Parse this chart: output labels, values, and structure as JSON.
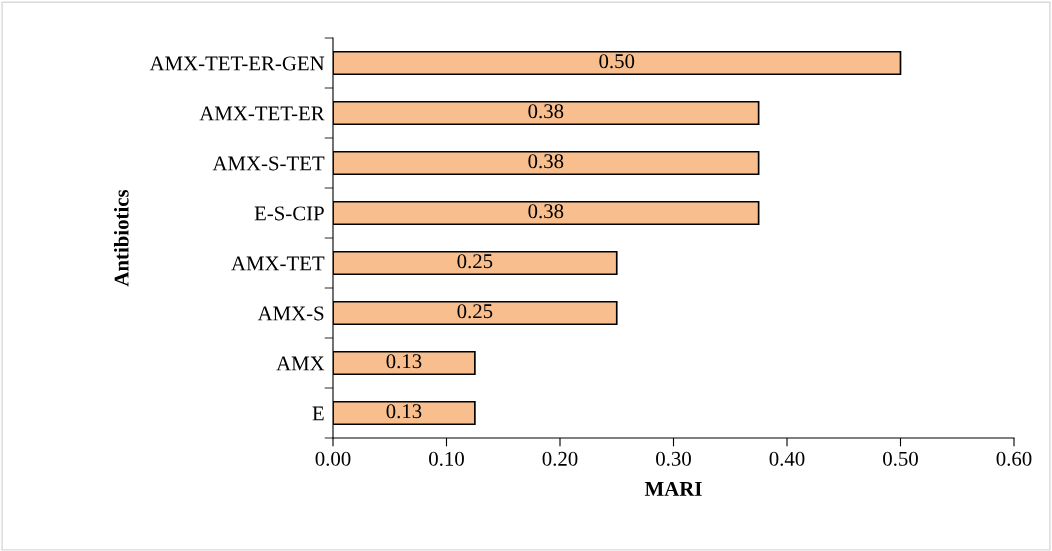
{
  "chart_data": {
    "type": "bar",
    "orientation": "horizontal",
    "xlabel": "MARI",
    "ylabel": "Antibiotics",
    "categories": [
      "AMX-TET-ER-GEN",
      "AMX-TET-ER",
      "AMX-S-TET",
      "E-S-CIP",
      "AMX-TET",
      "AMX-S",
      "AMX",
      "E"
    ],
    "values": [
      0.5,
      0.375,
      0.375,
      0.375,
      0.25,
      0.25,
      0.125,
      0.125
    ],
    "value_labels": [
      "0.50",
      "0.38",
      "0.38",
      "0.38",
      "0.25",
      "0.25",
      "0.13",
      "0.13"
    ],
    "color": "#f9be8e",
    "xlim": [
      0,
      0.6
    ],
    "xticks": [
      {
        "value": 0,
        "label": "0.00"
      },
      {
        "value": 0.1,
        "label": "0.10"
      },
      {
        "value": 0.2,
        "label": "0.20"
      },
      {
        "value": 0.3,
        "label": "0.30"
      },
      {
        "value": 0.4,
        "label": "0.40"
      },
      {
        "value": 0.5,
        "label": "0.50"
      },
      {
        "value": 0.6,
        "label": "0.60"
      }
    ],
    "grid": false
  }
}
